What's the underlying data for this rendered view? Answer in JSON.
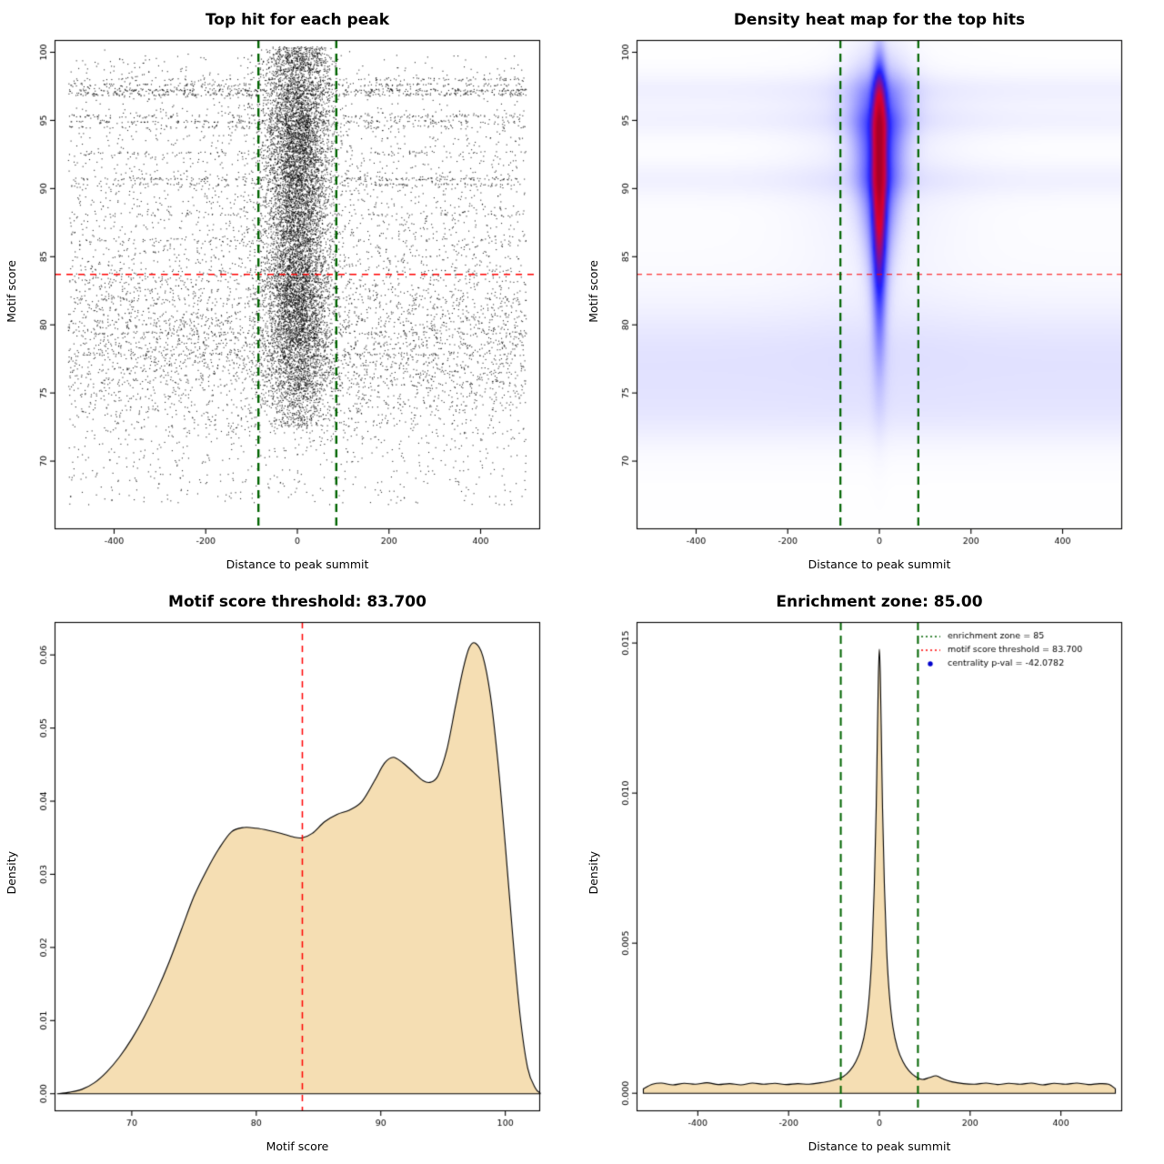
{
  "chart_data": [
    {
      "type": "scatter",
      "title": "Top hit for each peak",
      "xlabel": "Distance to peak summit",
      "ylabel": "Motif score",
      "xlim": [
        -530,
        530
      ],
      "ylim": [
        65,
        100.9
      ],
      "xticks": [
        -400,
        -200,
        0,
        200,
        400
      ],
      "xtick_labels": [
        "-400",
        "-200",
        "0",
        "200",
        "400"
      ],
      "yticks": [
        70,
        75,
        80,
        85,
        90,
        95,
        100
      ],
      "ytick_labels": [
        "70",
        "75",
        "80",
        "85",
        "90",
        "95",
        "100"
      ],
      "point_color": "#000000",
      "threshold": {
        "y": 83.7,
        "color": "#ff0000",
        "dash": [
          7,
          6
        ],
        "width": 1.5
      },
      "zone": {
        "x": [
          -85,
          85
        ],
        "color": "#006400",
        "dash": [
          9,
          6
        ],
        "width": 2.4
      },
      "scatter_model": {
        "seed": 1337,
        "central": {
          "n": 9500,
          "x_sd": 36,
          "y_mix": [
            {
              "w": 0.5,
              "mean": 93.5,
              "sd": 4.6
            },
            {
              "w": 0.5,
              "mean": 81.5,
              "sd": 4.8
            }
          ],
          "y_max": 100.4,
          "y_min": 72.5
        },
        "background": {
          "n": 6200,
          "x_range": [
            -500,
            500
          ],
          "y_min": 66.5,
          "y_max": 100.2,
          "y_mix": [
            {
              "w": 0.5,
              "mean": 78.3,
              "sd": 3.4
            },
            {
              "w": 0.22,
              "mean": 88,
              "sd": 5.5
            },
            {
              "w": 0.22,
              "uniform": [
                72,
                99.8
              ]
            },
            {
              "w": 0.06,
              "uniform": [
                66.8,
                73
              ]
            }
          ]
        },
        "stripes": [
          {
            "y": 98.0,
            "n": 110
          },
          {
            "y": 97.6,
            "n": 190
          },
          {
            "y": 97.2,
            "n": 310
          },
          {
            "y": 96.9,
            "n": 250
          },
          {
            "y": 95.3,
            "n": 150
          },
          {
            "y": 94.9,
            "n": 190
          },
          {
            "y": 94.5,
            "n": 110
          },
          {
            "y": 92.6,
            "n": 80
          },
          {
            "y": 90.7,
            "n": 190
          },
          {
            "y": 90.3,
            "n": 120
          },
          {
            "y": 88.1,
            "n": 70
          },
          {
            "y": 86.2,
            "n": 55
          },
          {
            "y": 81.9,
            "n": 55
          },
          {
            "y": 79.4,
            "n": 65
          },
          {
            "y": 77.8,
            "n": 85
          }
        ]
      }
    },
    {
      "type": "heatmap",
      "title": "Density heat map for the top hits",
      "xlabel": "Distance to peak summit",
      "ylabel": "Motif score",
      "xlim": [
        -530,
        530
      ],
      "ylim": [
        65,
        100.9
      ],
      "xticks": [
        -400,
        -200,
        0,
        200,
        400
      ],
      "xtick_labels": [
        "-400",
        "-200",
        "0",
        "200",
        "400"
      ],
      "yticks": [
        70,
        75,
        80,
        85,
        90,
        95,
        100
      ],
      "ytick_labels": [
        "70",
        "75",
        "80",
        "85",
        "90",
        "95",
        "100"
      ],
      "threshold": {
        "y": 83.7,
        "color": "#ff0000",
        "dash": [
          6,
          5
        ],
        "width": 1.2
      },
      "zone": {
        "x": [
          -85,
          85
        ],
        "color": "#006400",
        "dash": [
          9,
          6
        ],
        "width": 2.2
      },
      "colors": {
        "low": "#ffffff",
        "mid": "#2020ff",
        "high": "#e00030",
        "core": "#a80028"
      },
      "density_model": {
        "y_peak": 93.5,
        "y_sd_up": 3.8,
        "y_sd_down": 8,
        "core_w": 10,
        "w_core": 0.78,
        "halo_base": 14,
        "halo_grow": 34,
        "halo_y0": 80,
        "halo_yspan": 18,
        "w_halo": 0.45,
        "glow_w": 130,
        "w_glow": 0.07,
        "base": 0.022,
        "base_y_center": 84,
        "base_y_sd": 13,
        "bands": [
          {
            "y": 77.5,
            "sd": 3.0,
            "amp": 0.1
          },
          {
            "y": 73.2,
            "sd": 1.8,
            "amp": 0.05
          },
          {
            "y": 90.6,
            "sd": 0.9,
            "amp": 0.05
          },
          {
            "y": 95.0,
            "sd": 0.8,
            "amp": 0.05
          },
          {
            "y": 97.2,
            "sd": 0.9,
            "amp": 0.06
          }
        ]
      }
    },
    {
      "type": "area",
      "title": "Motif score threshold: 83.700",
      "xlabel": "Motif score",
      "ylabel": "Density",
      "xlim": [
        63.8,
        102.8
      ],
      "ylim": [
        -0.0024,
        0.0645
      ],
      "xticks": [
        70,
        80,
        90,
        100
      ],
      "xtick_labels": [
        "70",
        "80",
        "90",
        "100"
      ],
      "yticks": [
        0.0,
        0.01,
        0.02,
        0.03,
        0.04,
        0.05,
        0.06
      ],
      "ytick_labels": [
        "0.00",
        "0.01",
        "0.02",
        "0.03",
        "0.04",
        "0.05",
        "0.06"
      ],
      "fill": "#f5deb3",
      "threshold": {
        "x": 83.7,
        "color": "#ff0000",
        "dash": [
          7,
          6
        ],
        "width": 1.5
      },
      "x": [
        64,
        65,
        66,
        67,
        68,
        69,
        70,
        71,
        72,
        73,
        74,
        75,
        76,
        77,
        78,
        79,
        80,
        81,
        82,
        83,
        83.7,
        84.5,
        85.5,
        86.5,
        87.5,
        88.5,
        89.5,
        90.3,
        91,
        91.8,
        92.6,
        93.4,
        94,
        94.6,
        95.3,
        96,
        96.6,
        97.1,
        97.6,
        98.2,
        98.8,
        99.4,
        100,
        100.6,
        101.2,
        101.8,
        102.4,
        102.8
      ],
      "y": [
        0,
        0.0002,
        0.0006,
        0.0015,
        0.003,
        0.005,
        0.0075,
        0.0105,
        0.014,
        0.018,
        0.0225,
        0.027,
        0.0305,
        0.0335,
        0.0358,
        0.0364,
        0.0363,
        0.036,
        0.0356,
        0.0351,
        0.035,
        0.0356,
        0.0372,
        0.0382,
        0.0388,
        0.04,
        0.0428,
        0.0452,
        0.046,
        0.0452,
        0.044,
        0.0428,
        0.0426,
        0.0435,
        0.047,
        0.053,
        0.058,
        0.061,
        0.0616,
        0.0598,
        0.0545,
        0.0455,
        0.034,
        0.0215,
        0.0105,
        0.0035,
        0.0008,
        0.0001
      ]
    },
    {
      "type": "area",
      "title": "Enrichment zone: 85.00",
      "xlabel": "Distance to peak summit",
      "ylabel": "Density",
      "xlim": [
        -535,
        535
      ],
      "ylim": [
        -0.0006,
        0.0157
      ],
      "xticks": [
        -400,
        -200,
        0,
        200,
        400
      ],
      "xtick_labels": [
        "-400",
        "-200",
        "0",
        "200",
        "400"
      ],
      "yticks": [
        0.0,
        0.005,
        0.01,
        0.015
      ],
      "ytick_labels": [
        "0.000",
        "0.005",
        "0.010",
        "0.015"
      ],
      "fill": "#f5deb3",
      "zone": {
        "x": [
          -85,
          85
        ],
        "color": "#006400",
        "dash": [
          9,
          6
        ],
        "width": 2.0
      },
      "legend_pos": "top-right",
      "legend": [
        {
          "label": "enrichment zone = 85",
          "color": "#006400",
          "type": "dotted-line"
        },
        {
          "label": "motif score threshold = 83.700",
          "color": "#ff0000",
          "type": "dotted-line"
        },
        {
          "label": "centrality p-val = -42.0782",
          "color": "#0000cc",
          "type": "point"
        }
      ],
      "x": [
        -520,
        -500,
        -480,
        -455,
        -430,
        -405,
        -380,
        -355,
        -330,
        -305,
        -280,
        -255,
        -230,
        -205,
        -180,
        -155,
        -130,
        -110,
        -95,
        -80,
        -65,
        -52,
        -40,
        -30,
        -22,
        -16,
        -11,
        -7,
        -4,
        -2,
        0,
        2,
        4,
        7,
        11,
        16,
        22,
        30,
        40,
        52,
        65,
        80,
        95,
        110,
        125,
        140,
        160,
        185,
        210,
        235,
        260,
        285,
        310,
        335,
        360,
        385,
        410,
        435,
        460,
        485,
        505,
        520
      ],
      "y": [
        0.00015,
        0.0003,
        0.00034,
        0.00028,
        0.00033,
        0.0003,
        0.00035,
        0.00029,
        0.00032,
        0.00028,
        0.00034,
        0.0003,
        0.00033,
        0.00029,
        0.00032,
        0.0003,
        0.00035,
        0.0004,
        0.00046,
        0.00055,
        0.00075,
        0.00105,
        0.0015,
        0.0022,
        0.0033,
        0.0048,
        0.007,
        0.0095,
        0.0123,
        0.014,
        0.0148,
        0.014,
        0.0123,
        0.0095,
        0.007,
        0.0048,
        0.0033,
        0.0022,
        0.0015,
        0.00105,
        0.00075,
        0.00055,
        0.00046,
        0.00052,
        0.00058,
        0.00048,
        0.00038,
        0.00032,
        0.0003,
        0.00034,
        0.00029,
        0.00033,
        0.0003,
        0.00034,
        0.00028,
        0.00033,
        0.0003,
        0.00034,
        0.00029,
        0.00032,
        0.0003,
        0.00015
      ]
    }
  ]
}
